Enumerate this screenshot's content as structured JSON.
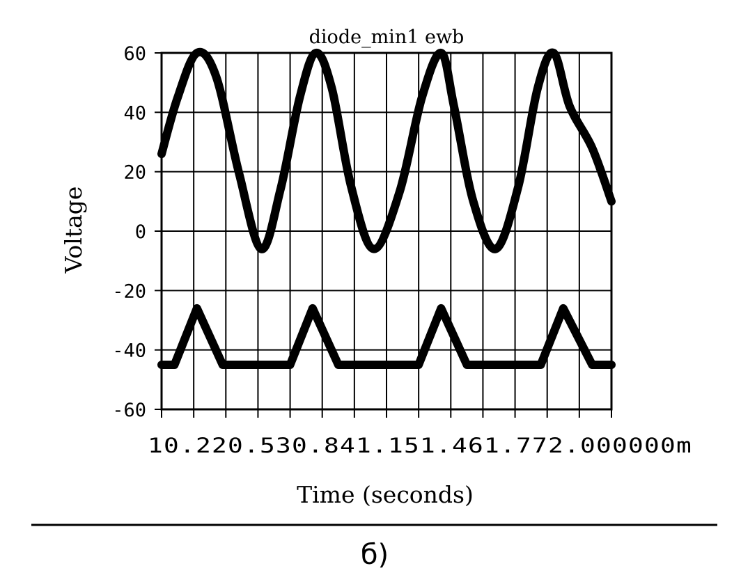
{
  "figure": {
    "caption": "б)"
  },
  "chart_data": {
    "type": "line",
    "title": "diode_min1 ewb",
    "xlabel": "Time (seconds)",
    "ylabel": "Voltage",
    "x_tick_text": "10.220.530.841.151.461.772.000000m",
    "ylim": [
      -60,
      60
    ],
    "y_ticks": [
      60,
      40,
      20,
      0,
      -20,
      -40,
      -60
    ],
    "x_grid_divisions": 7,
    "grid": true,
    "series": [
      {
        "x": [
          0,
          0.25,
          0.55,
          0.85,
          1.2,
          1.55,
          1.85,
          2.15,
          2.4,
          2.65,
          2.95,
          3.3,
          3.7,
          4.05,
          4.35,
          4.55,
          4.85,
          5.2,
          5.55,
          5.85,
          6.1,
          6.35,
          6.7,
          7.0
        ],
        "values": [
          26,
          45,
          60,
          52,
          20,
          -6,
          14,
          45,
          60,
          48,
          15,
          -6,
          13,
          45,
          60,
          42,
          10,
          -6,
          15,
          48,
          60,
          42,
          28,
          10
        ]
      },
      {
        "x": [
          0,
          0.2,
          0.55,
          0.95,
          2.0,
          2.35,
          2.75,
          4.0,
          4.35,
          4.75,
          5.9,
          6.25,
          6.7,
          7.0
        ],
        "values": [
          -45,
          -45,
          -26,
          -45,
          -45,
          -26,
          -45,
          -45,
          -26,
          -45,
          -45,
          -26,
          -45,
          -45
        ]
      }
    ]
  }
}
